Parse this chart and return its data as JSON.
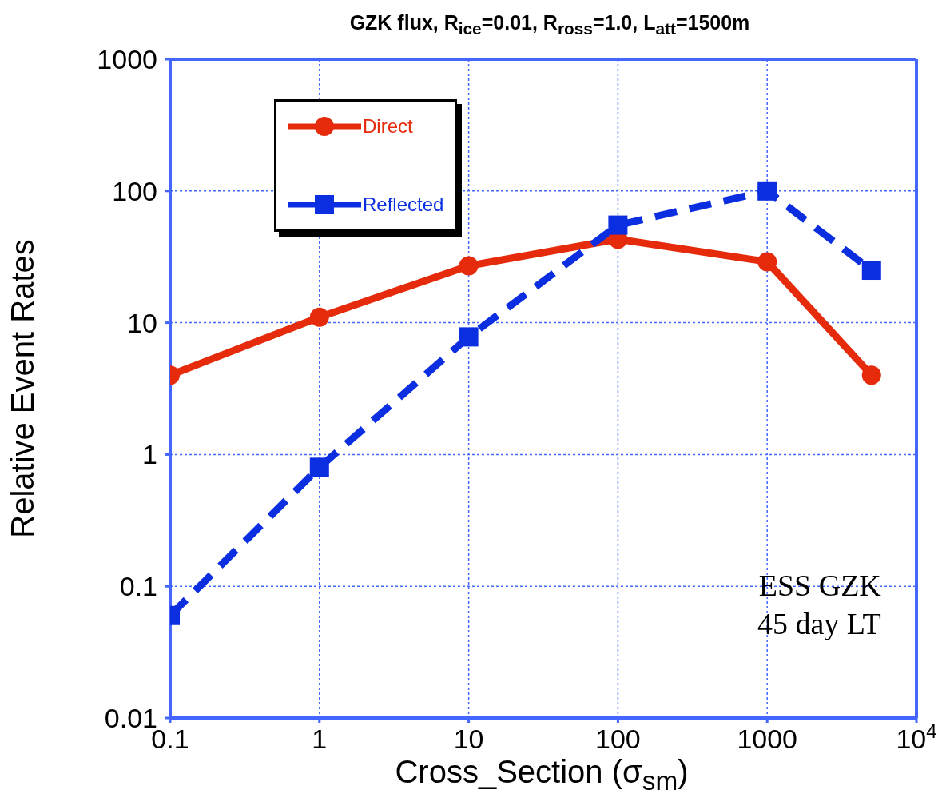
{
  "chart_data": {
    "type": "line",
    "title": "GZK flux, R$_{ice}$=0.01, R$_{ross}$=1.0, L$_{att}$=1500m",
    "xlabel": "Cross_Section (σ$_{sm}$)",
    "ylabel": "Relative  Event  Rates",
    "x": [
      0.1,
      1,
      10,
      100,
      1000,
      5000
    ],
    "series": [
      {
        "name": "Direct",
        "color": "#e52b0c",
        "values": [
          4.0,
          11,
          27,
          43,
          29,
          4.0
        ],
        "marker": "circle",
        "line_style": "solid"
      },
      {
        "name": "Reflected",
        "color": "#0a2ee0",
        "values": [
          0.06,
          0.8,
          7.8,
          55,
          100,
          25
        ],
        "marker": "square",
        "line_style": "dashed"
      }
    ],
    "log": "xy",
    "xlim": [
      0.1,
      10000
    ],
    "ylim": [
      0.01,
      1000
    ],
    "xticks": [
      0.1,
      1,
      10,
      100,
      1000,
      {
        "value": 10000,
        "label": "10$^{4}$"
      }
    ],
    "yticks": [
      0.01,
      0.1,
      1,
      10,
      100,
      1000
    ],
    "grid": true,
    "legend": "top left",
    "annotations": [
      "ESS GZK",
      "45 day LT"
    ]
  }
}
